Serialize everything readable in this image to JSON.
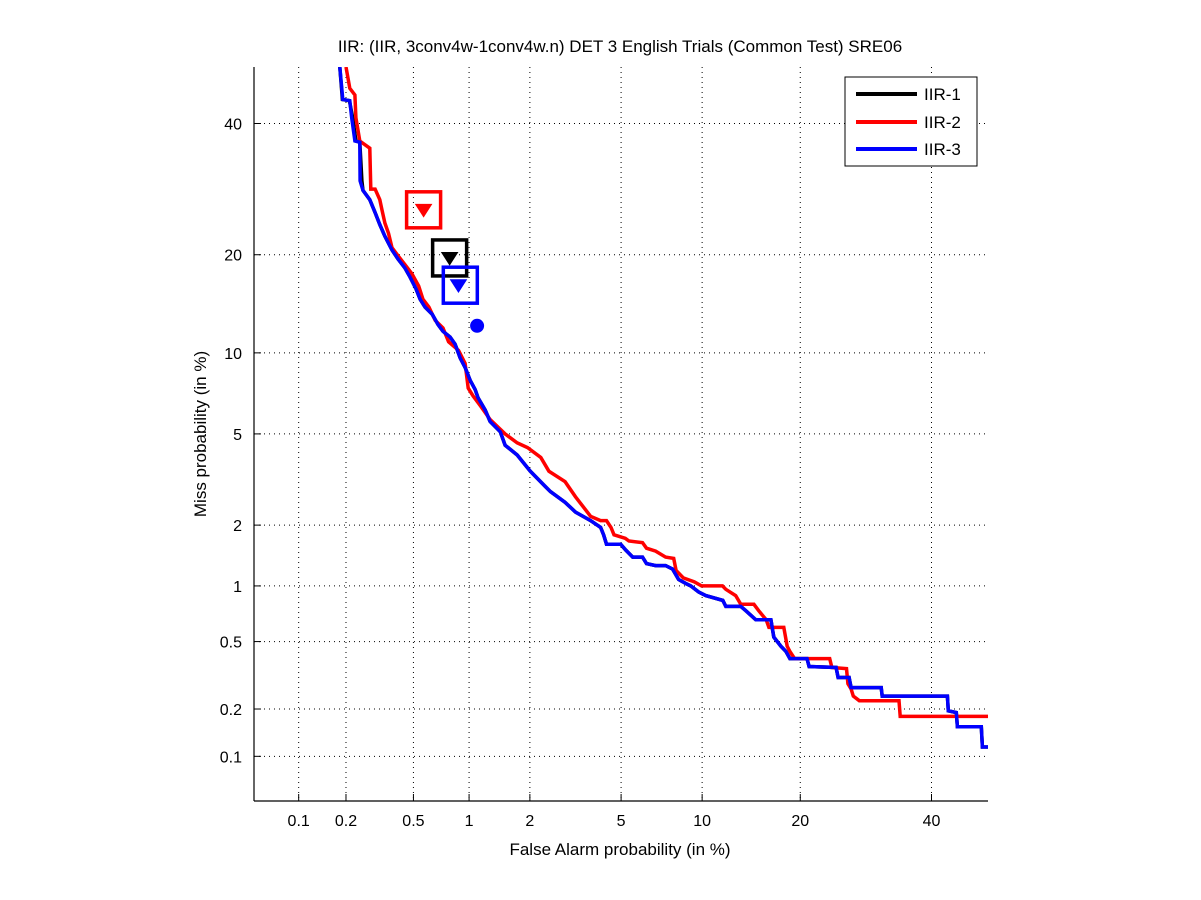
{
  "chart_data": {
    "type": "line",
    "scale": "normal-deviate (DET)",
    "title": "IIR: (IIR, 3conv4w-1conv4w.n) DET 3 English Trials (Common Test) SRE06",
    "xlabel": "False Alarm probability (in %)",
    "ylabel": "Miss probability (in %)",
    "xlim": [
      0.05,
      50
    ],
    "ylim": [
      0.05,
      50
    ],
    "xticks": [
      0.1,
      0.2,
      0.5,
      1,
      2,
      5,
      10,
      20,
      40
    ],
    "xtick_labels": [
      "0.1",
      "0.2",
      "0.5",
      "1",
      "2",
      "5",
      "10",
      "20",
      "40"
    ],
    "yticks": [
      0.1,
      0.2,
      0.5,
      1,
      2,
      5,
      10,
      20,
      40
    ],
    "ytick_labels": [
      "0.1",
      "0.2",
      "0.5",
      "1",
      "2",
      "5",
      "10",
      "20",
      "40"
    ],
    "grid": true,
    "legend_position": "top-right",
    "series": [
      {
        "name": "IIR-1",
        "color": "#000000",
        "points": [
          [
            0.183,
            50
          ],
          [
            0.19,
            44.2
          ],
          [
            0.21,
            44.0
          ],
          [
            0.22,
            41.0
          ],
          [
            0.23,
            37.0
          ],
          [
            0.243,
            36.8
          ],
          [
            0.25,
            30.5
          ],
          [
            0.254,
            29.0
          ],
          [
            0.279,
            27.6
          ],
          [
            0.3,
            25.7
          ],
          [
            0.32,
            24.0
          ],
          [
            0.343,
            22.4
          ],
          [
            0.377,
            20.6
          ],
          [
            0.408,
            19.5
          ],
          [
            0.447,
            18.4
          ],
          [
            0.479,
            17.3
          ],
          [
            0.517,
            16.0
          ],
          [
            0.545,
            14.9
          ],
          [
            0.58,
            14.1
          ],
          [
            0.635,
            13.4
          ],
          [
            0.685,
            12.4
          ],
          [
            0.728,
            11.8
          ],
          [
            0.795,
            11.3
          ],
          [
            0.845,
            10.7
          ],
          [
            0.899,
            9.6
          ],
          [
            0.954,
            8.9
          ],
          [
            1.014,
            8.0
          ],
          [
            1.075,
            7.4
          ],
          [
            1.113,
            6.9
          ],
          [
            1.21,
            6.2
          ],
          [
            1.28,
            5.6
          ],
          [
            1.44,
            5.1
          ],
          [
            1.52,
            4.5
          ],
          [
            1.74,
            4.1
          ],
          [
            2.01,
            3.5
          ],
          [
            2.36,
            3.0
          ],
          [
            2.49,
            2.85
          ],
          [
            2.9,
            2.55
          ],
          [
            3.22,
            2.3
          ],
          [
            3.74,
            2.1
          ],
          [
            4.12,
            1.95
          ],
          [
            4.24,
            1.8
          ],
          [
            4.36,
            1.62
          ],
          [
            4.98,
            1.62
          ],
          [
            5.21,
            1.52
          ],
          [
            5.56,
            1.4
          ],
          [
            6.07,
            1.4
          ],
          [
            6.29,
            1.3
          ],
          [
            6.81,
            1.27
          ],
          [
            7.42,
            1.27
          ],
          [
            7.87,
            1.22
          ],
          [
            8.27,
            1.08
          ],
          [
            8.77,
            1.03
          ],
          [
            9.13,
            1.0
          ],
          [
            9.73,
            0.93
          ],
          [
            10.29,
            0.89
          ],
          [
            11.72,
            0.84
          ],
          [
            11.99,
            0.78
          ],
          [
            13.39,
            0.78
          ],
          [
            13.88,
            0.74
          ],
          [
            14.89,
            0.66
          ],
          [
            16.52,
            0.66
          ],
          [
            16.85,
            0.53
          ],
          [
            17.67,
            0.47
          ],
          [
            18.25,
            0.44
          ],
          [
            18.73,
            0.4
          ],
          [
            20.86,
            0.4
          ],
          [
            21.13,
            0.36
          ],
          [
            24.8,
            0.355
          ],
          [
            25.08,
            0.31
          ],
          [
            26.67,
            0.31
          ],
          [
            26.97,
            0.27
          ],
          [
            31.6,
            0.27
          ],
          [
            31.77,
            0.24
          ],
          [
            42.78,
            0.24
          ],
          [
            42.94,
            0.195
          ],
          [
            44.35,
            0.19
          ],
          [
            44.55,
            0.155
          ],
          [
            48.8,
            0.155
          ],
          [
            49.0,
            0.115
          ],
          [
            50,
            0.115
          ]
        ]
      },
      {
        "name": "IIR-2",
        "color": "#ff0000",
        "points": [
          [
            0.2,
            50
          ],
          [
            0.211,
            46.2
          ],
          [
            0.227,
            45.0
          ],
          [
            0.23,
            41.0
          ],
          [
            0.243,
            37.0
          ],
          [
            0.279,
            35.8
          ],
          [
            0.283,
            29.2
          ],
          [
            0.3,
            29.2
          ],
          [
            0.32,
            27.6
          ],
          [
            0.33,
            26.0
          ],
          [
            0.343,
            24.2
          ],
          [
            0.36,
            22.8
          ],
          [
            0.377,
            20.9
          ],
          [
            0.408,
            19.9
          ],
          [
            0.447,
            18.8
          ],
          [
            0.49,
            17.7
          ],
          [
            0.535,
            16.3
          ],
          [
            0.565,
            14.9
          ],
          [
            0.61,
            14.1
          ],
          [
            0.66,
            12.8
          ],
          [
            0.728,
            12.1
          ],
          [
            0.78,
            10.9
          ],
          [
            0.88,
            10.2
          ],
          [
            0.954,
            9.2
          ],
          [
            0.99,
            7.5
          ],
          [
            1.05,
            7.0
          ],
          [
            1.15,
            6.4
          ],
          [
            1.28,
            5.7
          ],
          [
            1.52,
            5.0
          ],
          [
            1.74,
            4.6
          ],
          [
            1.95,
            4.4
          ],
          [
            2.25,
            4.0
          ],
          [
            2.45,
            3.5
          ],
          [
            2.9,
            3.15
          ],
          [
            3.22,
            2.7
          ],
          [
            3.74,
            2.2
          ],
          [
            4.12,
            2.1
          ],
          [
            4.36,
            2.1
          ],
          [
            4.55,
            1.95
          ],
          [
            4.68,
            1.8
          ],
          [
            5.2,
            1.73
          ],
          [
            5.37,
            1.68
          ],
          [
            6.07,
            1.65
          ],
          [
            6.29,
            1.55
          ],
          [
            6.81,
            1.5
          ],
          [
            7.42,
            1.4
          ],
          [
            7.94,
            1.38
          ],
          [
            8.1,
            1.2
          ],
          [
            8.6,
            1.1
          ],
          [
            9.4,
            1.05
          ],
          [
            9.95,
            1.0
          ],
          [
            11.7,
            1.0
          ],
          [
            11.99,
            0.96
          ],
          [
            12.9,
            0.89
          ],
          [
            13.39,
            0.8
          ],
          [
            14.7,
            0.8
          ],
          [
            15.2,
            0.74
          ],
          [
            16.0,
            0.66
          ],
          [
            16.3,
            0.6
          ],
          [
            18.0,
            0.6
          ],
          [
            18.4,
            0.47
          ],
          [
            18.73,
            0.44
          ],
          [
            19.3,
            0.4
          ],
          [
            23.9,
            0.4
          ],
          [
            24.2,
            0.355
          ],
          [
            26.3,
            0.35
          ],
          [
            26.5,
            0.285
          ],
          [
            26.97,
            0.265
          ],
          [
            27.3,
            0.24
          ],
          [
            28.2,
            0.225
          ],
          [
            31.8,
            0.225
          ],
          [
            34.5,
            0.225
          ],
          [
            34.7,
            0.18
          ],
          [
            50,
            0.18
          ]
        ]
      },
      {
        "name": "IIR-3",
        "color": "#0000ff",
        "points": [
          [
            0.183,
            50
          ],
          [
            0.191,
            44.2
          ],
          [
            0.211,
            44.0
          ],
          [
            0.217,
            41.0
          ],
          [
            0.227,
            37.0
          ],
          [
            0.243,
            36.8
          ],
          [
            0.244,
            30.5
          ],
          [
            0.254,
            29.0
          ],
          [
            0.279,
            27.6
          ],
          [
            0.3,
            25.7
          ],
          [
            0.32,
            24.0
          ],
          [
            0.343,
            22.4
          ],
          [
            0.377,
            20.6
          ],
          [
            0.408,
            19.5
          ],
          [
            0.447,
            18.4
          ],
          [
            0.479,
            17.3
          ],
          [
            0.517,
            16.0
          ],
          [
            0.545,
            14.9
          ],
          [
            0.58,
            14.1
          ],
          [
            0.635,
            13.4
          ],
          [
            0.685,
            12.4
          ],
          [
            0.728,
            11.8
          ],
          [
            0.795,
            11.3
          ],
          [
            0.845,
            10.7
          ],
          [
            0.899,
            9.6
          ],
          [
            0.954,
            8.9
          ],
          [
            1.014,
            8.0
          ],
          [
            1.075,
            7.4
          ],
          [
            1.113,
            6.9
          ],
          [
            1.21,
            6.2
          ],
          [
            1.28,
            5.6
          ],
          [
            1.44,
            5.1
          ],
          [
            1.52,
            4.5
          ],
          [
            1.74,
            4.1
          ],
          [
            2.01,
            3.5
          ],
          [
            2.36,
            3.0
          ],
          [
            2.49,
            2.85
          ],
          [
            2.9,
            2.55
          ],
          [
            3.22,
            2.3
          ],
          [
            3.74,
            2.1
          ],
          [
            4.12,
            1.95
          ],
          [
            4.24,
            1.8
          ],
          [
            4.36,
            1.62
          ],
          [
            4.98,
            1.62
          ],
          [
            5.21,
            1.52
          ],
          [
            5.56,
            1.4
          ],
          [
            6.07,
            1.4
          ],
          [
            6.29,
            1.3
          ],
          [
            6.81,
            1.27
          ],
          [
            7.42,
            1.27
          ],
          [
            7.87,
            1.22
          ],
          [
            8.27,
            1.08
          ],
          [
            8.77,
            1.03
          ],
          [
            9.13,
            1.0
          ],
          [
            9.73,
            0.93
          ],
          [
            10.29,
            0.89
          ],
          [
            11.72,
            0.84
          ],
          [
            11.99,
            0.78
          ],
          [
            13.39,
            0.78
          ],
          [
            13.88,
            0.74
          ],
          [
            14.89,
            0.66
          ],
          [
            16.52,
            0.66
          ],
          [
            16.85,
            0.53
          ],
          [
            17.67,
            0.47
          ],
          [
            18.25,
            0.44
          ],
          [
            18.73,
            0.4
          ],
          [
            20.86,
            0.4
          ],
          [
            21.13,
            0.36
          ],
          [
            24.8,
            0.355
          ],
          [
            25.08,
            0.31
          ],
          [
            26.67,
            0.31
          ],
          [
            26.97,
            0.27
          ],
          [
            31.6,
            0.27
          ],
          [
            31.77,
            0.24
          ],
          [
            42.78,
            0.24
          ],
          [
            42.94,
            0.195
          ],
          [
            44.35,
            0.19
          ],
          [
            44.55,
            0.155
          ],
          [
            48.8,
            0.155
          ],
          [
            49.0,
            0.115
          ],
          [
            50,
            0.115
          ]
        ]
      }
    ],
    "markers": [
      {
        "series": "IIR-1",
        "type": "square",
        "color": "#000000",
        "x": 0.79,
        "y": 19.6
      },
      {
        "series": "IIR-1",
        "type": "triangle-down",
        "color": "#000000",
        "x": 0.79,
        "y": 19.6
      },
      {
        "series": "IIR-2",
        "type": "square",
        "color": "#ff0000",
        "x": 0.57,
        "y": 26.1
      },
      {
        "series": "IIR-2",
        "type": "triangle-down",
        "color": "#ff0000",
        "x": 0.57,
        "y": 26.1
      },
      {
        "series": "IIR-3",
        "type": "square",
        "color": "#0000ff",
        "x": 0.9,
        "y": 16.4
      },
      {
        "series": "IIR-3",
        "type": "triangle-down",
        "color": "#0000ff",
        "x": 0.88,
        "y": 16.4
      },
      {
        "series": "IIR-3",
        "type": "circle",
        "color": "#0000ff",
        "x": 1.1,
        "y": 12.3
      }
    ]
  }
}
